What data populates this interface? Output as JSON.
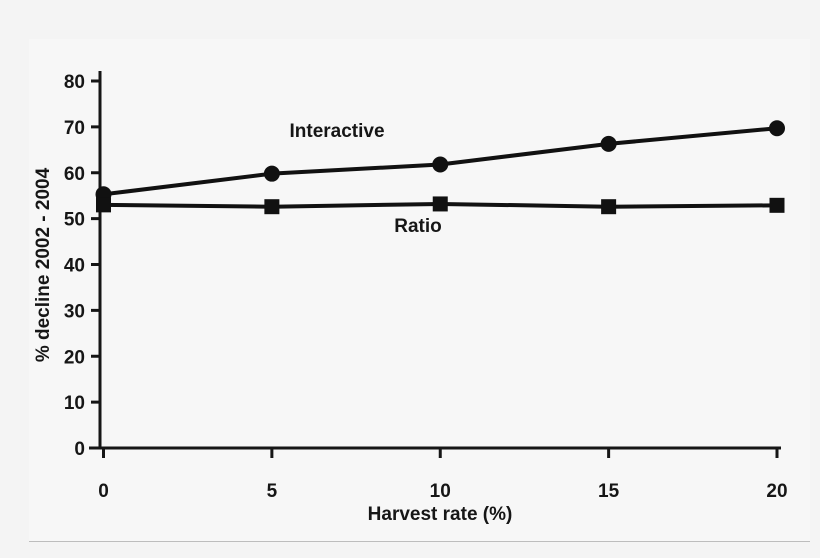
{
  "figure": {
    "background_color": "#f4f4f4",
    "plot_background_color": "#f7f7f7",
    "frame_border_color": "#2b2b2b",
    "ink_color": "#161616"
  },
  "chart_data": {
    "type": "line",
    "title": "",
    "xlabel": "Harvest rate (%)",
    "ylabel": "% decline 2002 - 2004",
    "x": [
      0,
      5,
      10,
      15,
      20
    ],
    "xticks": [
      0,
      5,
      10,
      15,
      20
    ],
    "yticks": [
      0,
      10,
      20,
      30,
      40,
      50,
      60,
      70,
      80
    ],
    "xlim": [
      0,
      20
    ],
    "ylim": [
      0,
      80
    ],
    "grid": false,
    "legend_position": "inline-annotations",
    "series": [
      {
        "name": "Interactive",
        "marker": "circle",
        "color": "#111111",
        "values": [
          55.3,
          59.8,
          61.8,
          66.3,
          69.7
        ]
      },
      {
        "name": "Ratio",
        "marker": "square",
        "color": "#111111",
        "values": [
          53.0,
          52.6,
          53.2,
          52.6,
          52.9
        ]
      }
    ]
  }
}
